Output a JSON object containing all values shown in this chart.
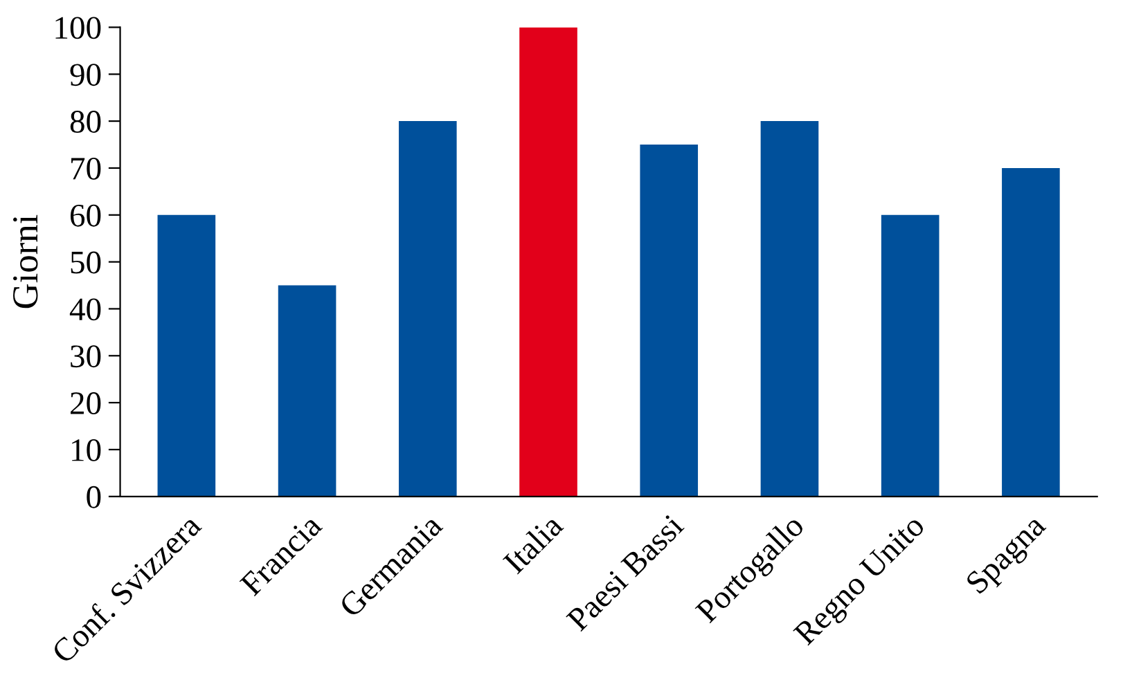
{
  "chart_data": {
    "type": "bar",
    "ylabel": "Giorni",
    "categories": [
      "Conf. Svizzera",
      "Francia",
      "Germania",
      "Italia",
      "Paesi Bassi",
      "Portogallo",
      "Regno Unito",
      "Spagna"
    ],
    "values": [
      60,
      45,
      80,
      100,
      75,
      80,
      60,
      70
    ],
    "colors": [
      "#00509b",
      "#00509b",
      "#00509b",
      "#e2001a",
      "#00509b",
      "#00509b",
      "#00509b",
      "#00509b"
    ],
    "ylim": [
      0,
      100
    ],
    "yticks": [
      0,
      10,
      20,
      30,
      40,
      50,
      60,
      70,
      80,
      90,
      100
    ],
    "grid": false
  }
}
